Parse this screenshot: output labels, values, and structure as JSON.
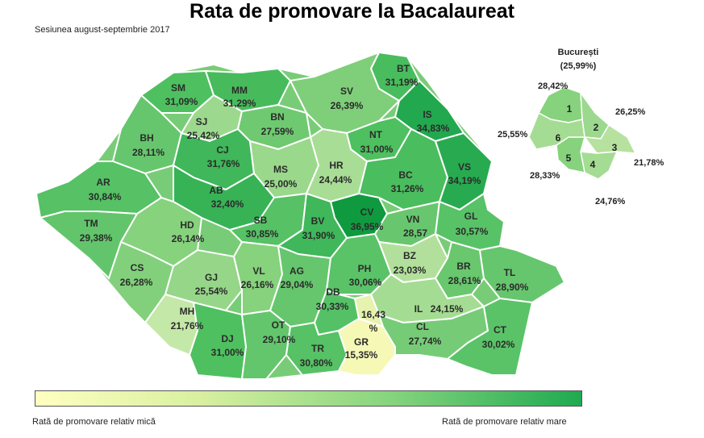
{
  "title": "Rata de promovare la Bacalaureat",
  "subtitle": "Sesiunea august-septembrie 2017",
  "legend": {
    "low": "Rată de promovare relativ mică",
    "high": "Rată de promovare relativ mare",
    "colors": [
      "#ffffc0",
      "#1faa50"
    ]
  },
  "counties": [
    {
      "code": "SM",
      "value": "31,09%"
    },
    {
      "code": "MM",
      "value": "31,29%"
    },
    {
      "code": "BT",
      "value": "31,19%"
    },
    {
      "code": "SV",
      "value": "26,39%"
    },
    {
      "code": "IS",
      "value": "34,83%"
    },
    {
      "code": "SJ",
      "value": "25,42%"
    },
    {
      "code": "BN",
      "value": "27,59%"
    },
    {
      "code": "BH",
      "value": "28,11%"
    },
    {
      "code": "CJ",
      "value": "31,76%"
    },
    {
      "code": "NT",
      "value": "31,00%"
    },
    {
      "code": "MS",
      "value": "25,00%"
    },
    {
      "code": "HR",
      "value": "24,44%"
    },
    {
      "code": "BC",
      "value": "31,26%"
    },
    {
      "code": "VS",
      "value": "34,19%"
    },
    {
      "code": "AR",
      "value": "30,84%"
    },
    {
      "code": "AB",
      "value": "32,40%"
    },
    {
      "code": "CV",
      "value": "36,95%"
    },
    {
      "code": "TM",
      "value": "29,38%"
    },
    {
      "code": "HD",
      "value": "26,14%"
    },
    {
      "code": "SB",
      "value": "30,85%"
    },
    {
      "code": "BV",
      "value": "31,90%"
    },
    {
      "code": "VN",
      "value": "28,57"
    },
    {
      "code": "GL",
      "value": "30,57%"
    },
    {
      "code": "CS",
      "value": "26,28%"
    },
    {
      "code": "GJ",
      "value": "25,54%"
    },
    {
      "code": "VL",
      "value": "26,16%"
    },
    {
      "code": "AG",
      "value": "29,04%"
    },
    {
      "code": "PH",
      "value": "30,06%"
    },
    {
      "code": "BZ",
      "value": "23,03%"
    },
    {
      "code": "BR",
      "value": "28,61%"
    },
    {
      "code": "TL",
      "value": "28,90%"
    },
    {
      "code": "DB",
      "value": "30,33%"
    },
    {
      "code": "MH",
      "value": "21,76%"
    },
    {
      "code": "IL",
      "value": "24,15%"
    },
    {
      "code": "DJ",
      "value": "31,00%"
    },
    {
      "code": "OT",
      "value": "29,10%"
    },
    {
      "code": "TR",
      "value": "30,80%"
    },
    {
      "code": "GR",
      "value": "15,35%"
    },
    {
      "code": "CL",
      "value": "27,74%"
    },
    {
      "code": "CT",
      "value": "30,02%"
    }
  ],
  "ilfov": {
    "value_line1": "16,43",
    "value_line2": "%"
  },
  "bucuresti": {
    "name": "București",
    "value": "(25,99%)",
    "sectors": [
      {
        "num": "1",
        "value": "28,42%"
      },
      {
        "num": "2",
        "value": "26,25%"
      },
      {
        "num": "3",
        "value": "21,78%"
      },
      {
        "num": "4",
        "value": "24,76%"
      },
      {
        "num": "5",
        "value": "28,33%"
      },
      {
        "num": "6",
        "value": "25,55%"
      }
    ]
  }
}
